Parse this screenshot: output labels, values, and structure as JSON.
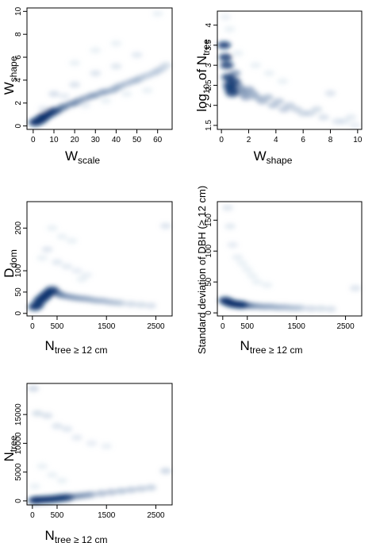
{
  "chart_data": [
    {
      "id": "p1",
      "type": "scatter",
      "render": "density",
      "xlabel": {
        "main": "W",
        "sub": "scale"
      },
      "ylabel": {
        "main": "W",
        "sub": "shape"
      },
      "xlim": [
        -3,
        67
      ],
      "ylim": [
        -0.3,
        10.3
      ],
      "xticks": [
        0,
        10,
        20,
        30,
        40,
        50,
        60
      ],
      "yticks": [
        0,
        2,
        4,
        6,
        8,
        10
      ],
      "x": [
        1,
        2,
        3,
        4,
        5,
        6,
        8,
        10,
        12,
        14,
        15,
        18,
        20,
        22,
        25,
        28,
        30,
        33,
        35,
        38,
        40,
        42,
        45,
        48,
        50,
        52,
        55,
        58,
        60,
        62,
        64,
        10,
        20,
        30,
        40,
        50,
        5,
        15,
        25,
        35,
        45,
        55,
        60,
        40,
        30,
        20
      ],
      "y": [
        0.3,
        0.4,
        0.5,
        0.6,
        0.8,
        0.9,
        1.1,
        1.3,
        1.4,
        1.6,
        1.7,
        1.9,
        2.0,
        2.2,
        2.4,
        2.6,
        2.7,
        2.9,
        3.0,
        3.1,
        3.3,
        3.5,
        3.7,
        3.9,
        4.0,
        4.2,
        4.4,
        4.6,
        4.8,
        5.0,
        5.3,
        2.8,
        3.6,
        4.6,
        5.2,
        6.2,
        1.5,
        2.6,
        1.8,
        2.2,
        2.8,
        3.1,
        9.8,
        7.2,
        6.6,
        5.5
      ],
      "colorScale": {
        "low": "#deebf7",
        "high": "#08306b"
      }
    },
    {
      "id": "p2",
      "type": "scatter",
      "render": "density",
      "xlabel": {
        "main": "W",
        "sub": "shape"
      },
      "ylabel": {
        "pre": "log",
        "presub": "10",
        "mid": " of N",
        "sub": "tree"
      },
      "xlim": [
        -0.3,
        10.3
      ],
      "ylim": [
        1.4,
        4.35
      ],
      "xticks": [
        0,
        2,
        4,
        6,
        8,
        10
      ],
      "yticks": [
        1.5,
        2.0,
        2.5,
        3.0,
        3.5,
        4.0
      ],
      "x": [
        0.2,
        0.3,
        0.4,
        0.5,
        0.6,
        0.7,
        0.8,
        0.9,
        1.0,
        1.2,
        1.4,
        1.6,
        1.8,
        2.0,
        2.3,
        2.6,
        3.0,
        3.4,
        3.8,
        4.2,
        4.6,
        5.0,
        5.5,
        6.0,
        6.5,
        7.0,
        7.5,
        8.0,
        8.5,
        9.0,
        9.5,
        9.8,
        0.3,
        0.6,
        1.2,
        2.5,
        3.5,
        4.5
      ],
      "y": [
        3.5,
        3.2,
        3.0,
        2.7,
        2.5,
        2.4,
        2.3,
        2.6,
        2.8,
        2.5,
        2.4,
        2.3,
        2.2,
        2.4,
        2.3,
        2.2,
        2.1,
        2.2,
        2.0,
        2.1,
        1.9,
        2.0,
        1.9,
        1.8,
        1.8,
        1.9,
        1.7,
        2.3,
        1.6,
        1.6,
        1.7,
        1.5,
        4.2,
        3.9,
        3.3,
        3.0,
        2.8,
        2.6
      ],
      "colorScale": {
        "low": "#deebf7",
        "high": "#08306b"
      }
    },
    {
      "id": "p3",
      "type": "scatter",
      "render": "density",
      "xlabel": {
        "main": "N",
        "sub": "tree ≥ 12 cm"
      },
      "ylabel": {
        "main": "D",
        "sub": "dom"
      },
      "xlim": [
        -110,
        2830
      ],
      "ylim": [
        -6,
        262
      ],
      "xticks": [
        0,
        500,
        1500,
        2500
      ],
      "yticks": [
        0,
        50,
        100,
        200
      ],
      "x": [
        50,
        100,
        150,
        200,
        250,
        300,
        350,
        400,
        450,
        500,
        550,
        600,
        700,
        800,
        900,
        1000,
        1100,
        1200,
        1300,
        1400,
        1500,
        1600,
        1700,
        1800,
        2000,
        2200,
        2400,
        2700,
        300,
        500,
        700,
        900,
        1100,
        400,
        600,
        200,
        800,
        1000
      ],
      "y": [
        15,
        20,
        30,
        35,
        40,
        45,
        50,
        55,
        50,
        48,
        45,
        42,
        40,
        38,
        36,
        35,
        34,
        32,
        30,
        30,
        28,
        26,
        25,
        24,
        22,
        20,
        18,
        205,
        150,
        120,
        110,
        100,
        90,
        200,
        180,
        130,
        170,
        80
      ],
      "colorScale": {
        "low": "#deebf7",
        "high": "#08306b"
      }
    },
    {
      "id": "p4",
      "type": "scatter",
      "render": "density",
      "xlabel": {
        "main": "N",
        "sub": "tree ≥ 12 cm"
      },
      "ylabel": {
        "text": "Standard deviation of DBH (≥ 12 cm)"
      },
      "xlim": [
        -110,
        2830
      ],
      "ylim": [
        -5,
        180
      ],
      "xticks": [
        0,
        500,
        1500,
        2500
      ],
      "yticks": [
        0,
        50,
        100,
        150
      ],
      "x": [
        50,
        100,
        150,
        200,
        250,
        300,
        350,
        400,
        450,
        500,
        550,
        600,
        700,
        800,
        900,
        1000,
        1100,
        1200,
        1300,
        1400,
        1500,
        1600,
        1800,
        2000,
        2200,
        2700,
        100,
        150,
        200,
        300,
        400,
        500,
        600,
        700,
        900
      ],
      "y": [
        20,
        18,
        16,
        15,
        14,
        14,
        13,
        13,
        12,
        12,
        12,
        11,
        11,
        10,
        10,
        10,
        9,
        9,
        9,
        8,
        8,
        8,
        7,
        7,
        6,
        40,
        170,
        140,
        110,
        90,
        80,
        70,
        60,
        50,
        45
      ],
      "colorScale": {
        "low": "#deebf7",
        "high": "#08306b"
      }
    },
    {
      "id": "p5",
      "type": "scatter",
      "render": "density",
      "xlabel": {
        "main": "N",
        "sub": "tree ≥ 12 cm"
      },
      "ylabel": {
        "main": "N",
        "sub": "tree"
      },
      "xlim": [
        -110,
        2830
      ],
      "ylim": [
        -700,
        20400
      ],
      "xticks": [
        0,
        500,
        1500,
        2500
      ],
      "yticks": [
        0,
        5000,
        10000,
        15000
      ],
      "x": [
        50,
        100,
        200,
        300,
        400,
        500,
        600,
        700,
        800,
        900,
        1000,
        1100,
        1200,
        1400,
        1600,
        1800,
        2000,
        2200,
        2400,
        2700,
        20,
        100,
        300,
        500,
        700,
        900,
        1200,
        1500,
        200,
        400,
        600,
        50
      ],
      "y": [
        100,
        150,
        200,
        250,
        300,
        400,
        500,
        600,
        700,
        800,
        900,
        1000,
        1100,
        1300,
        1500,
        1700,
        1900,
        2100,
        2300,
        5200,
        19500,
        15200,
        14800,
        13000,
        12500,
        11000,
        10000,
        9500,
        6000,
        4500,
        3500,
        2500
      ],
      "colorScale": {
        "low": "#deebf7",
        "high": "#08306b"
      }
    }
  ]
}
